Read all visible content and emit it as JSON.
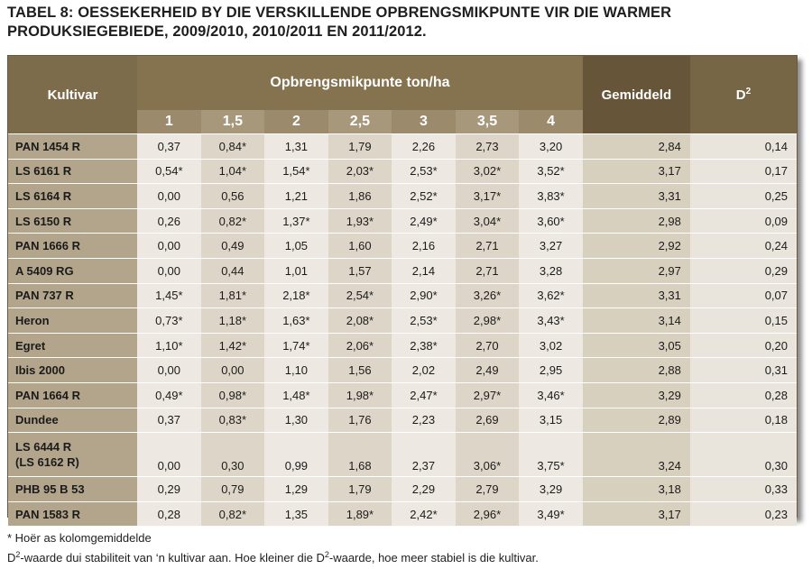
{
  "title": {
    "line1": "TABEL 8: OESSEKERHEID BY DIE VERSKILLENDE OPBRENGSMIKPUNTE VIR DIE WARMER",
    "line2": "PRODUKSIEGEBIEDE, 2009/2010, 2010/2011 EN 2011/2012."
  },
  "table": {
    "header": {
      "kultivar": "Kultivar",
      "group": "Opbrengsmikpunte ton/ha",
      "gemiddeld": "Gemiddeld",
      "d2_base": "D",
      "d2_sup": "2",
      "targets": [
        "1",
        "1,5",
        "2",
        "2,5",
        "3",
        "3,5",
        "4"
      ]
    },
    "rows": [
      {
        "name": "PAN 1454 R",
        "vals": [
          "0,37",
          "0,84*",
          "1,31",
          "1,79",
          "2,26",
          "2,73",
          "3,20"
        ],
        "gem": "2,84",
        "d2": "0,14"
      },
      {
        "name": "LS 6161 R",
        "vals": [
          "0,54*",
          "1,04*",
          "1,54*",
          "2,03*",
          "2,53*",
          "3,02*",
          "3,52*"
        ],
        "gem": "3,17",
        "d2": "0,17"
      },
      {
        "name": "LS 6164 R",
        "vals": [
          "0,00",
          "0,56",
          "1,21",
          "1,86",
          "2,52*",
          "3,17*",
          "3,83*"
        ],
        "gem": "3,31",
        "d2": "0,25"
      },
      {
        "name": "LS 6150 R",
        "vals": [
          "0,26",
          "0,82*",
          "1,37*",
          "1,93*",
          "2,49*",
          "3,04*",
          "3,60*"
        ],
        "gem": "2,98",
        "d2": "0,09"
      },
      {
        "name": "PAN 1666 R",
        "vals": [
          "0,00",
          "0,49",
          "1,05",
          "1,60",
          "2,16",
          "2,71",
          "3,27"
        ],
        "gem": "2,92",
        "d2": "0,24"
      },
      {
        "name": "A 5409 RG",
        "vals": [
          "0,00",
          "0,44",
          "1,01",
          "1,57",
          "2,14",
          "2,71",
          "3,28"
        ],
        "gem": "2,97",
        "d2": "0,29"
      },
      {
        "name": "PAN 737 R",
        "vals": [
          "1,45*",
          "1,81*",
          "2,18*",
          "2,54*",
          "2,90*",
          "3,26*",
          "3,62*"
        ],
        "gem": "3,31",
        "d2": "0,07"
      },
      {
        "name": "Heron",
        "vals": [
          "0,73*",
          "1,18*",
          "1,63*",
          "2,08*",
          "2,53*",
          "2,98*",
          "3,43*"
        ],
        "gem": "3,14",
        "d2": "0,15"
      },
      {
        "name": "Egret",
        "vals": [
          "1,10*",
          "1,42*",
          "1,74*",
          "2,06*",
          "2,38*",
          "2,70",
          "3,02"
        ],
        "gem": "3,05",
        "d2": "0,20"
      },
      {
        "name": "Ibis 2000",
        "vals": [
          "0,00",
          "0,00",
          "1,10",
          "1,56",
          "2,02",
          "2,49",
          "2,95"
        ],
        "gem": "2,88",
        "d2": "0,31"
      },
      {
        "name": "PAN 1664 R",
        "vals": [
          "0,49*",
          "0,98*",
          "1,48*",
          "1,98*",
          "2,47*",
          "2,97*",
          "3,46*"
        ],
        "gem": "3,29",
        "d2": "0,28"
      },
      {
        "name": "Dundee",
        "vals": [
          "0,37",
          "0,83*",
          "1,30",
          "1,76",
          "2,23",
          "2,69",
          "3,15"
        ],
        "gem": "2,89",
        "d2": "0,18"
      },
      {
        "name": "LS 6444 R",
        "name2": "(LS 6162 R)",
        "vals": [
          "0,00",
          "0,30",
          "0,99",
          "1,68",
          "2,37",
          "3,06*",
          "3,75*"
        ],
        "gem": "3,24",
        "d2": "0,30"
      },
      {
        "name": "PHB 95 B 53",
        "vals": [
          "0,29",
          "0,79",
          "1,29",
          "1,79",
          "2,29",
          "2,79",
          "3,29"
        ],
        "gem": "3,18",
        "d2": "0,33"
      },
      {
        "name": "PAN 1583 R",
        "vals": [
          "0,28",
          "0,82*",
          "1,35",
          "1,89*",
          "2,42*",
          "2,96*",
          "3,49*"
        ],
        "gem": "3,17",
        "d2": "0,23"
      }
    ]
  },
  "notes": {
    "line1": "* Hoër as kolomgemiddelde",
    "line2_a": "D",
    "line2_sup1": "2",
    "line2_b": "-waarde dui stabiliteit van ‘n kultivar aan. Hoe kleiner die D",
    "line2_sup2": "2",
    "line2_c": "-waarde, hoe meer stabiel is die kultivar."
  }
}
